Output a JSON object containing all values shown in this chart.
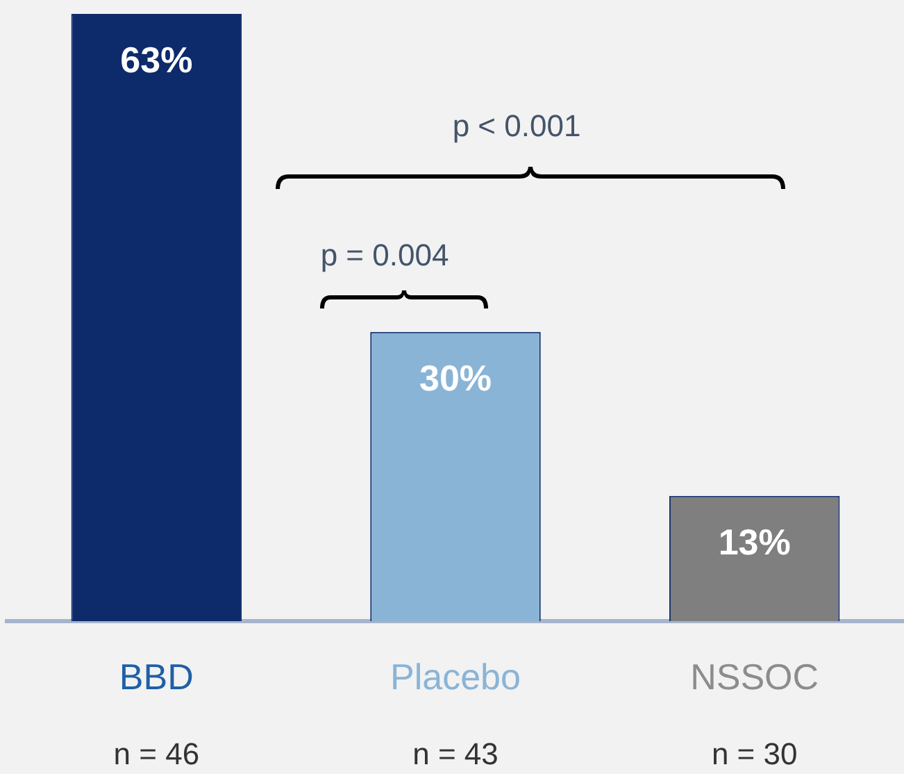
{
  "chart_data": {
    "type": "bar",
    "categories": [
      "BBD",
      "Placebo",
      "NSSOC"
    ],
    "values": [
      63,
      30,
      13
    ],
    "colors": [
      "#0d2b6b",
      "#8ab4d6",
      "#7f7f7f"
    ],
    "value_labels": [
      "63%",
      "30%",
      "13%"
    ],
    "tick_labels": "x",
    "grid": false,
    "legend": false,
    "annotations": [
      "p < 0.001",
      "p = 0.004",
      "n = 46",
      "n = 43",
      "n = 30"
    ]
  }
}
